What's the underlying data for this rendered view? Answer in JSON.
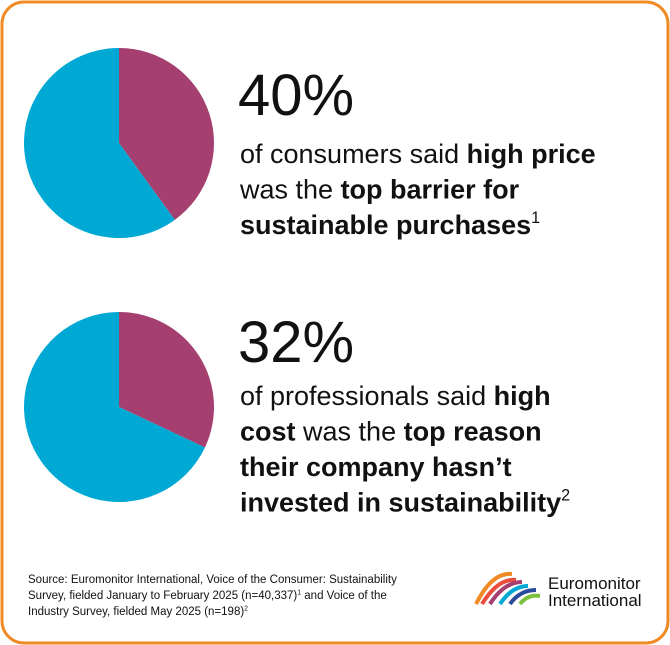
{
  "chart_data": [
    {
      "type": "pie",
      "values": [
        40,
        60
      ],
      "value_labels": [
        "40%",
        null
      ],
      "colors": [
        "#a53f6f",
        "#00a8d4"
      ],
      "description": [
        [
          {
            "text": "of consumers said ",
            "bold": false
          },
          {
            "text": "high price",
            "bold": true
          }
        ],
        [
          {
            "text": "was the ",
            "bold": false
          },
          {
            "text": "top barrier for",
            "bold": true
          }
        ],
        [
          {
            "text": "sustainable purchases",
            "bold": true
          },
          {
            "text": "1",
            "sup": true
          }
        ]
      ]
    },
    {
      "type": "pie",
      "values": [
        32,
        68
      ],
      "value_labels": [
        "32%",
        null
      ],
      "colors": [
        "#a53f6f",
        "#00a8d4"
      ],
      "description": [
        [
          {
            "text": "of professionals said ",
            "bold": false
          },
          {
            "text": "high",
            "bold": true
          }
        ],
        [
          {
            "text": "cost",
            "bold": true
          },
          {
            "text": " was the ",
            "bold": false
          },
          {
            "text": "top reason",
            "bold": true
          }
        ],
        [
          {
            "text": "their company hasn’t",
            "bold": true
          }
        ],
        [
          {
            "text": "invested in sustainability",
            "bold": true
          },
          {
            "text": "2",
            "sup": true
          }
        ]
      ]
    }
  ],
  "source": [
    [
      {
        "text": "Source: Euromonitor International, Voice of the Consumer: Sustainability"
      }
    ],
    [
      {
        "text": "Survey, fielded January to February 2025 (n=40,337)"
      },
      {
        "text": "1",
        "sup": true
      },
      {
        "text": " and Voice of the"
      }
    ],
    [
      {
        "text": "Industry Survey, fielded May 2025 (n=198)"
      },
      {
        "text": "2",
        "sup": true
      }
    ]
  ],
  "logo": {
    "line1": "Euromonitor",
    "line2": "International"
  }
}
